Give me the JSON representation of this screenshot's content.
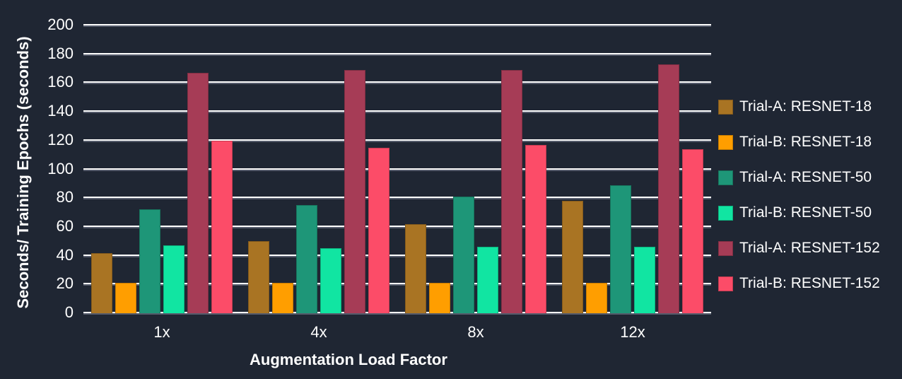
{
  "figure": {
    "background": "#1f2633",
    "text_color": "#ffffff"
  },
  "chart_data": {
    "type": "bar",
    "title": "",
    "xlabel": "Augmentation Load Factor",
    "ylabel": "Seconds/ Training Epochs (seconds)",
    "categories": [
      "1x",
      "4x",
      "8x",
      "12x"
    ],
    "series": [
      {
        "name": "Trial-A: RESNET-18",
        "color": "#a97423",
        "pattern": "dotted-hatch",
        "values": [
          42,
          50,
          62,
          78
        ]
      },
      {
        "name": "Trial-B: RESNET-18",
        "color": "#ff9e00",
        "pattern": "solid",
        "values": [
          21,
          21,
          21,
          21
        ]
      },
      {
        "name": "Trial-A: RESNET-50",
        "color": "#1e9678",
        "pattern": "dotted-hatch",
        "values": [
          72,
          75,
          81,
          89
        ]
      },
      {
        "name": "Trial-B: RESNET-50",
        "color": "#11e5a2",
        "pattern": "solid",
        "values": [
          47,
          45,
          46,
          46
        ]
      },
      {
        "name": "Trial-A: RESNET-152",
        "color": "#a63c56",
        "pattern": "dotted-hatch",
        "values": [
          167,
          169,
          169,
          173
        ]
      },
      {
        "name": "Trial-B: RESNET-152",
        "color": "#fc4c68",
        "pattern": "solid",
        "values": [
          120,
          115,
          117,
          114
        ]
      }
    ],
    "ylim": [
      0,
      200
    ],
    "ytick_step": 20,
    "grid": true,
    "gridline_color": "#ffffff",
    "legend_position": "right"
  }
}
